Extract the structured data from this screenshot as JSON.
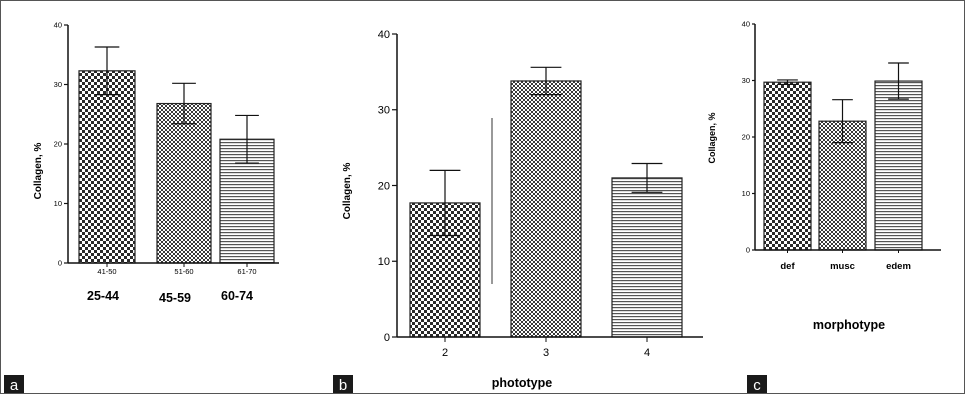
{
  "colors": {
    "axis": "#111111",
    "bar_stroke": "#222222",
    "label_bg": "#1a1a1a",
    "label_fg": "#ffffff"
  },
  "chart_data": [
    {
      "panel": "a",
      "type": "bar",
      "categories": [
        "41-50",
        "51-60",
        "61-70"
      ],
      "values": [
        32.3,
        26.8,
        20.8
      ],
      "errors": [
        4.0,
        3.4,
        4.0
      ],
      "patterns": [
        "checker-coarse",
        "checker-fine",
        "hlines"
      ],
      "extra_labels": [
        "25-44",
        "45-59",
        "60-74"
      ],
      "ylabel": "Collagen, %",
      "xlabel": "",
      "ylim": [
        0,
        40
      ],
      "yticks": [
        0,
        10,
        20,
        30,
        40
      ]
    },
    {
      "panel": "b",
      "type": "bar",
      "categories": [
        "2",
        "3",
        "4"
      ],
      "values": [
        17.7,
        33.8,
        21.0
      ],
      "errors": [
        4.3,
        1.8,
        1.9
      ],
      "patterns": [
        "checker-coarse",
        "checker-fine",
        "hlines"
      ],
      "ylabel": "Collagen, %",
      "xlabel": "phototype",
      "ylim": [
        0,
        40
      ],
      "yticks": [
        0,
        10,
        20,
        30,
        40
      ]
    },
    {
      "panel": "c",
      "type": "bar",
      "categories": [
        "def",
        "musc",
        "edem"
      ],
      "values": [
        29.7,
        22.8,
        29.9
      ],
      "errors": [
        0.4,
        3.8,
        3.2
      ],
      "patterns": [
        "checker-coarse",
        "checker-fine",
        "hlines"
      ],
      "ylabel": "Collagen, %",
      "xlabel": "morphotype",
      "ylim": [
        0,
        40
      ],
      "yticks": [
        0,
        10,
        20,
        30,
        40
      ]
    }
  ]
}
